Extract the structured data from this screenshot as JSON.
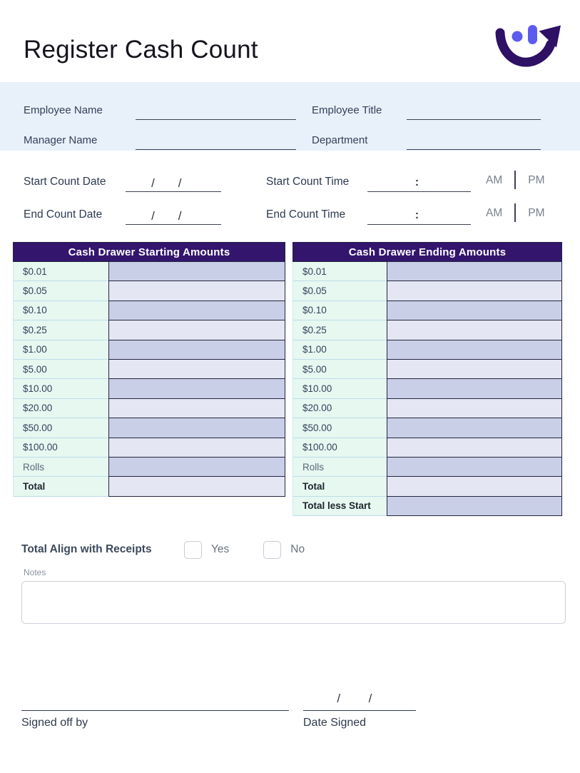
{
  "page": {
    "title": "Register Cash Count"
  },
  "logo": {
    "description": "smiling arc with arrow and two dots"
  },
  "colors": {
    "brand_purple": "#2e1065",
    "brand_blue": "#5b5bef",
    "table_header_bg": "#33156e",
    "band_bg": "#e8f0fa",
    "mint_cell": "#e6f8f0",
    "stripe_dark": "#c9cfe6",
    "stripe_light": "#e4e7f3"
  },
  "employee_section": {
    "fields": [
      {
        "label": "Employee Name",
        "value": ""
      },
      {
        "label": "Employee Title",
        "value": ""
      },
      {
        "label": "Manager Name",
        "value": ""
      },
      {
        "label": "Department",
        "value": ""
      }
    ]
  },
  "datetime_section": {
    "date_separator": "/",
    "time_separator": ":",
    "rows": [
      {
        "date_label": "Start Count Date",
        "date_value": "",
        "time_label": "Start Count Time",
        "time_value": "",
        "am": "AM",
        "pm": "PM"
      },
      {
        "date_label": "End Count Date",
        "date_value": "",
        "time_label": "End Count Time",
        "time_value": "",
        "am": "AM",
        "pm": "PM"
      }
    ]
  },
  "tables": [
    {
      "title": "Cash Drawer Starting Amounts",
      "rows": [
        {
          "label": "$0.01",
          "value": ""
        },
        {
          "label": "$0.05",
          "value": ""
        },
        {
          "label": "$0.10",
          "value": ""
        },
        {
          "label": "$0.25",
          "value": ""
        },
        {
          "label": "$1.00",
          "value": ""
        },
        {
          "label": "$5.00",
          "value": ""
        },
        {
          "label": "$10.00",
          "value": ""
        },
        {
          "label": "$20.00",
          "value": ""
        },
        {
          "label": "$50.00",
          "value": ""
        },
        {
          "label": "$100.00",
          "value": ""
        },
        {
          "label": "Rolls",
          "value": "",
          "muted": true
        },
        {
          "label": "Total",
          "value": "",
          "emphasis": true
        }
      ]
    },
    {
      "title": "Cash Drawer Ending Amounts",
      "rows": [
        {
          "label": "$0.01",
          "value": ""
        },
        {
          "label": "$0.05",
          "value": ""
        },
        {
          "label": "$0.10",
          "value": ""
        },
        {
          "label": "$0.25",
          "value": ""
        },
        {
          "label": "$1.00",
          "value": ""
        },
        {
          "label": "$5.00",
          "value": ""
        },
        {
          "label": "$10.00",
          "value": ""
        },
        {
          "label": "$20.00",
          "value": ""
        },
        {
          "label": "$50.00",
          "value": ""
        },
        {
          "label": "$100.00",
          "value": ""
        },
        {
          "label": "Rolls",
          "value": "",
          "muted": true
        },
        {
          "label": "Total",
          "value": "",
          "emphasis": true
        },
        {
          "label": "Total less Start",
          "value": "",
          "emphasis": true
        }
      ]
    }
  ],
  "receipts": {
    "label": "Total Align with Receipts",
    "options": [
      "Yes",
      "No"
    ],
    "checked": ""
  },
  "notes": {
    "label": "Notes",
    "value": ""
  },
  "signature": {
    "signed_label": "Signed off by",
    "signed_value": "",
    "date_label": "Date Signed",
    "date_value": "",
    "separator": "/"
  }
}
